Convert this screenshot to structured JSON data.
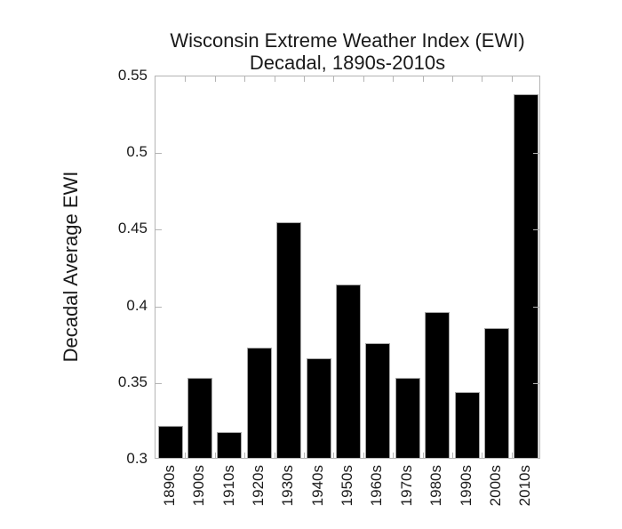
{
  "chart_data": {
    "type": "bar",
    "title": "Wisconsin Extreme Weather Index (EWI)",
    "subtitle": "Decadal, 1890s-2010s",
    "ylabel": "Decadal Average EWI",
    "xlabel": "",
    "categories": [
      "1890s",
      "1900s",
      "1910s",
      "1920s",
      "1930s",
      "1940s",
      "1950s",
      "1960s",
      "1970s",
      "1980s",
      "1990s",
      "2000s",
      "2010s"
    ],
    "values": [
      0.321,
      0.352,
      0.317,
      0.372,
      0.454,
      0.365,
      0.413,
      0.375,
      0.352,
      0.395,
      0.343,
      0.385,
      0.537
    ],
    "ylim": [
      0.3,
      0.55
    ],
    "ytick_step": 0.05,
    "ytick_labels": [
      "0.3",
      "0.35",
      "0.4",
      "0.45",
      "0.5",
      "0.55"
    ],
    "grid": false,
    "legend_position": "none",
    "colors": {
      "bar_fill": "#000000",
      "bar_edge": "#a6a6a6",
      "axis_frame": "#b4b4b4",
      "text": "#1a1a1a",
      "background": "#ffffff"
    }
  }
}
